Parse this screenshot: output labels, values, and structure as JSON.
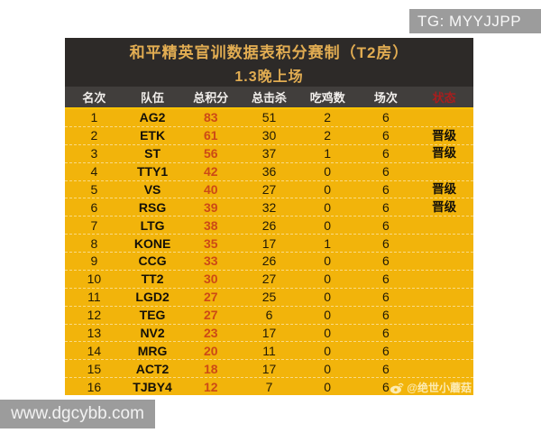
{
  "overlays": {
    "tg_label": "TG: MYYJJPP",
    "site_url": "www.dgcybb.com",
    "watermark_text": "@绝世小蘑菇",
    "watermark_icon": "weibo-eye-icon"
  },
  "chart_data": {
    "type": "table",
    "title": "和平精英官训数据表积分赛制（T2房）",
    "subtitle": "1.3晚上场",
    "columns": [
      "名次",
      "队伍",
      "总积分",
      "总击杀",
      "吃鸡数",
      "场次",
      "状态"
    ],
    "rows": [
      [
        "1",
        "AG2",
        "83",
        "51",
        "2",
        "6",
        ""
      ],
      [
        "2",
        "ETK",
        "61",
        "30",
        "2",
        "6",
        "晋级"
      ],
      [
        "3",
        "ST",
        "56",
        "37",
        "1",
        "6",
        "晋级"
      ],
      [
        "4",
        "TTY1",
        "42",
        "36",
        "0",
        "6",
        ""
      ],
      [
        "5",
        "VS",
        "40",
        "27",
        "0",
        "6",
        "晋级"
      ],
      [
        "6",
        "RSG",
        "39",
        "32",
        "0",
        "6",
        "晋级"
      ],
      [
        "7",
        "LTG",
        "38",
        "26",
        "0",
        "6",
        ""
      ],
      [
        "8",
        "KONE",
        "35",
        "17",
        "1",
        "6",
        ""
      ],
      [
        "9",
        "CCG",
        "33",
        "26",
        "0",
        "6",
        ""
      ],
      [
        "10",
        "TT2",
        "30",
        "27",
        "0",
        "6",
        ""
      ],
      [
        "11",
        "LGD2",
        "27",
        "25",
        "0",
        "6",
        ""
      ],
      [
        "12",
        "TEG",
        "27",
        "6",
        "0",
        "6",
        ""
      ],
      [
        "13",
        "NV2",
        "23",
        "17",
        "0",
        "6",
        ""
      ],
      [
        "14",
        "MRG",
        "20",
        "11",
        "0",
        "6",
        ""
      ],
      [
        "15",
        "ACT2",
        "18",
        "17",
        "0",
        "6",
        ""
      ],
      [
        "16",
        "TJBY4",
        "12",
        "7",
        "0",
        "6",
        ""
      ]
    ]
  },
  "colors": {
    "body_yellow": "#f2b40b",
    "title_bg": "#2d2a28",
    "subheader_bg": "#413e3c",
    "title_text": "#e2ad52",
    "score_red": "#cc4a16",
    "status_header_red": "#a81e1e",
    "header_underline": "#ffc400",
    "overlay_gray": "#9c9c9c"
  }
}
